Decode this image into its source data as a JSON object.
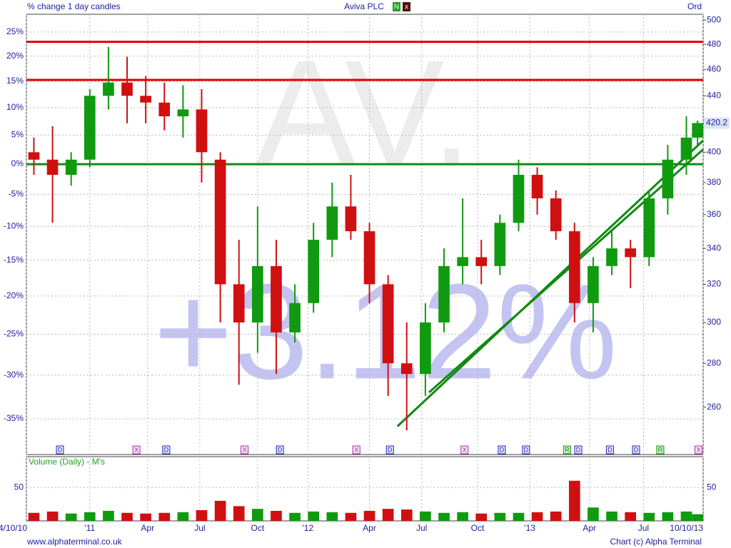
{
  "chart_data": {
    "type": "candlestick",
    "title": "Aviva PLC",
    "subtitle": "% change 1 day candles",
    "share_class": "Ord",
    "toggles": [
      "N",
      "x"
    ],
    "watermark": "AV.",
    "change_label": "+3.12%",
    "x": [
      0.4,
      1.4,
      2.4,
      3.4,
      4.4,
      5.4,
      6.4,
      7.4,
      8.4,
      9.4,
      10.4,
      11.4,
      12.4,
      13.4,
      14.4,
      15.4,
      16.4,
      17.4,
      18.4,
      19.4,
      20.4,
      21.4,
      22.4,
      23.4,
      24.4,
      25.4,
      26.4,
      27.4,
      28.4,
      29.4,
      30.4,
      31.4,
      32.4,
      33.4,
      34.4,
      35.4,
      36.0
    ],
    "open": [
      400,
      395,
      385,
      395,
      440,
      450,
      440,
      435,
      425,
      430,
      395,
      320,
      300,
      330,
      295,
      310,
      345,
      365,
      350,
      320,
      280,
      275,
      300,
      330,
      335,
      330,
      355,
      385,
      370,
      350,
      310,
      330,
      340,
      335,
      370,
      395,
      410
    ],
    "high": [
      410,
      418,
      400,
      445,
      478,
      470,
      455,
      450,
      448,
      445,
      400,
      345,
      365,
      345,
      320,
      355,
      380,
      385,
      355,
      325,
      300,
      310,
      340,
      370,
      345,
      360,
      395,
      390,
      375,
      355,
      335,
      350,
      345,
      375,
      405,
      425,
      422
    ],
    "low": [
      385,
      355,
      378,
      390,
      430,
      420,
      420,
      415,
      410,
      380,
      300,
      270,
      285,
      275,
      290,
      305,
      335,
      345,
      310,
      265,
      250,
      265,
      295,
      320,
      320,
      325,
      350,
      360,
      345,
      300,
      295,
      325,
      318,
      330,
      360,
      385,
      405
    ],
    "close": [
      395,
      385,
      395,
      440,
      450,
      440,
      435,
      425,
      430,
      400,
      320,
      300,
      330,
      295,
      310,
      345,
      365,
      350,
      320,
      280,
      275,
      300,
      330,
      335,
      330,
      355,
      385,
      370,
      350,
      310,
      330,
      340,
      335,
      370,
      395,
      410,
      420.2
    ],
    "up_color": "#109a10",
    "down_color": "#d01010",
    "xlim": [
      0,
      36.3
    ],
    "xticks": [
      {
        "value": 0,
        "label": "4/10/10"
      },
      {
        "value": 3.4,
        "label": "'11"
      },
      {
        "value": 6.5,
        "label": "Apr"
      },
      {
        "value": 9.3,
        "label": "Jul"
      },
      {
        "value": 12.4,
        "label": "Oct"
      },
      {
        "value": 15.1,
        "label": "'12"
      },
      {
        "value": 18.4,
        "label": "Apr"
      },
      {
        "value": 21.2,
        "label": "Jul"
      },
      {
        "value": 24.2,
        "label": "Oct"
      },
      {
        "value": 27.0,
        "label": "'13"
      },
      {
        "value": 30.2,
        "label": "Apr"
      },
      {
        "value": 33.1,
        "label": "Jul"
      },
      {
        "value": 36.3,
        "label": "10/10/13"
      }
    ],
    "ylim": [
      240,
      505
    ],
    "yscale": "log",
    "yticks": [
      260,
      280,
      300,
      320,
      340,
      360,
      380,
      400,
      420,
      440,
      460,
      480,
      500
    ],
    "y2lim": [
      -38.8,
      28.8
    ],
    "y2scale": "log-change",
    "y2ticks": [
      {
        "value": 25,
        "label": "25%"
      },
      {
        "value": 20,
        "label": "20%"
      },
      {
        "value": 15,
        "label": "15%"
      },
      {
        "value": 10,
        "label": "10%"
      },
      {
        "value": 5,
        "label": "5%"
      },
      {
        "value": 0,
        "label": "0%"
      },
      {
        "value": -5,
        "label": "-5%"
      },
      {
        "value": -10,
        "label": "-10%"
      },
      {
        "value": -15,
        "label": "-15%"
      },
      {
        "value": -20,
        "label": "-20%"
      },
      {
        "value": -25,
        "label": "-25%"
      },
      {
        "value": -30,
        "label": "-30%"
      },
      {
        "value": -35,
        "label": "-35%"
      }
    ],
    "grid": true,
    "levels": [
      {
        "value": 482,
        "color": "#e00000"
      },
      {
        "value": 452,
        "color": "#e00000"
      },
      {
        "value": 392,
        "color": "#108a10"
      }
    ],
    "trendlines": [
      {
        "x": [
          19.9,
          36.3
        ],
        "y": [
          251.7,
          408
        ],
        "color": "#108a10"
      },
      {
        "x": [
          21.6,
          36.3
        ],
        "y": [
          266.6,
          401.9
        ],
        "color": "#108a10"
      }
    ],
    "events": {
      "x": [
        1.8,
        5.9,
        7.5,
        11.7,
        13.6,
        17.7,
        19.5,
        23.5,
        25.5,
        26.8,
        29.0,
        29.6,
        31.3,
        32.7,
        34.0,
        36.05
      ],
      "labels": [
        "D",
        "X",
        "D",
        "X",
        "D",
        "X",
        "D",
        "X",
        "D",
        "D",
        "R",
        "D",
        "D",
        "D",
        "R",
        "X"
      ]
    },
    "volume": {
      "label": "Volume (Daily) - M's",
      "values": [
        12,
        14,
        11,
        13,
        15,
        12,
        11,
        12,
        13,
        16,
        30,
        22,
        18,
        15,
        12,
        14,
        13,
        12,
        15,
        18,
        17,
        14,
        12,
        13,
        11,
        12,
        12,
        13,
        14,
        60,
        20,
        14,
        13,
        12,
        13,
        14,
        10
      ],
      "ylim": [
        0,
        96
      ],
      "yticks": [
        50
      ]
    },
    "footer_left": "www.alphaterminal.co.uk",
    "footer_right": "Chart (c) Alpha Terminal"
  }
}
